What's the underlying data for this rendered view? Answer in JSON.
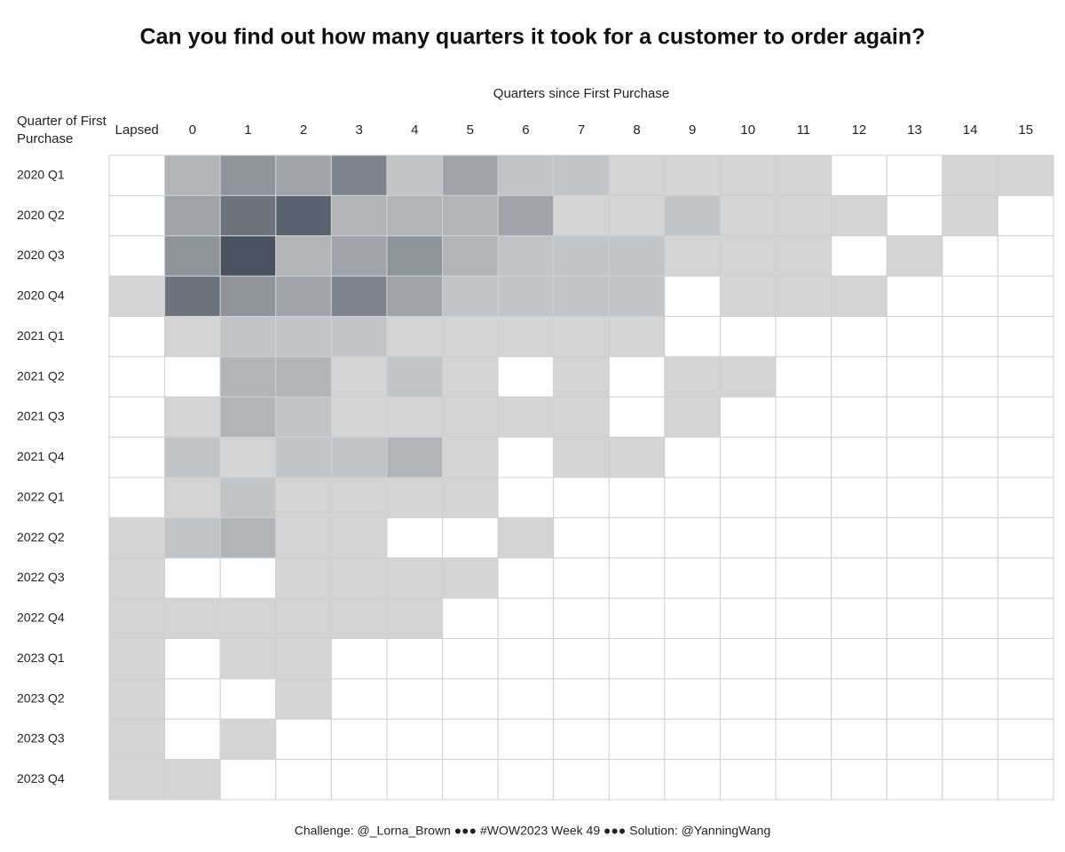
{
  "chart_data": {
    "type": "heatmap",
    "title": "Can you find out how many quarters it took for a customer to order again?",
    "x_title": "Quarters since First Purchase",
    "y_title": "Quarter of First Purchase",
    "footer": "Challenge: @_Lorna_Brown ●●● #WOW2023 Week 49 ●●● Solution: @YanningWang",
    "columns": [
      "Lapsed",
      "0",
      "1",
      "2",
      "3",
      "4",
      "5",
      "6",
      "7",
      "8",
      "9",
      "10",
      "11",
      "12",
      "13",
      "14",
      "15"
    ],
    "rows": [
      "2020 Q1",
      "2020 Q2",
      "2020 Q3",
      "2020 Q4",
      "2021 Q1",
      "2021 Q2",
      "2021 Q3",
      "2021 Q4",
      "2022 Q1",
      "2022 Q2",
      "2022 Q3",
      "2022 Q4",
      "2023 Q1",
      "2023 Q2",
      "2023 Q3",
      "2023 Q4"
    ],
    "values": [
      [
        null,
        3,
        5,
        4,
        6,
        2,
        4,
        2,
        2,
        1,
        1,
        1,
        1,
        null,
        null,
        1,
        1
      ],
      [
        null,
        4,
        7,
        8,
        3,
        3,
        3,
        4,
        1,
        1,
        2,
        1,
        1,
        1,
        null,
        1,
        null
      ],
      [
        null,
        5,
        9,
        3,
        4,
        5,
        3,
        2,
        2,
        2,
        1,
        1,
        1,
        null,
        1,
        null,
        null
      ],
      [
        1,
        7,
        5,
        4,
        6,
        4,
        2,
        2,
        2,
        2,
        null,
        1,
        1,
        1,
        null,
        null,
        null
      ],
      [
        null,
        1,
        2,
        2,
        2,
        1,
        1,
        1,
        1,
        1,
        null,
        null,
        null,
        null,
        null,
        null,
        null
      ],
      [
        null,
        null,
        3,
        3,
        1,
        2,
        1,
        null,
        1,
        null,
        1,
        1,
        null,
        null,
        null,
        null,
        null
      ],
      [
        null,
        1,
        3,
        2,
        1,
        1,
        1,
        1,
        1,
        null,
        1,
        null,
        null,
        null,
        null,
        null,
        null
      ],
      [
        null,
        2,
        1,
        2,
        2,
        3,
        1,
        null,
        1,
        1,
        null,
        null,
        null,
        null,
        null,
        null,
        null
      ],
      [
        null,
        1,
        2,
        1,
        1,
        1,
        1,
        null,
        null,
        null,
        null,
        null,
        null,
        null,
        null,
        null,
        null
      ],
      [
        1,
        2,
        3,
        1,
        1,
        null,
        null,
        1,
        null,
        null,
        null,
        null,
        null,
        null,
        null,
        null,
        null
      ],
      [
        1,
        null,
        null,
        1,
        1,
        1,
        1,
        null,
        null,
        null,
        null,
        null,
        null,
        null,
        null,
        null,
        null
      ],
      [
        1,
        1,
        1,
        1,
        1,
        1,
        null,
        null,
        null,
        null,
        null,
        null,
        null,
        null,
        null,
        null,
        null
      ],
      [
        1,
        null,
        1,
        1,
        null,
        null,
        null,
        null,
        null,
        null,
        null,
        null,
        null,
        null,
        null,
        null,
        null
      ],
      [
        1,
        null,
        null,
        1,
        null,
        null,
        null,
        null,
        null,
        null,
        null,
        null,
        null,
        null,
        null,
        null,
        null
      ],
      [
        1,
        null,
        1,
        null,
        null,
        null,
        null,
        null,
        null,
        null,
        null,
        null,
        null,
        null,
        null,
        null,
        null
      ],
      [
        1,
        1,
        null,
        null,
        null,
        null,
        null,
        null,
        null,
        null,
        null,
        null,
        null,
        null,
        null,
        null,
        null
      ]
    ],
    "color_low": "#d4d4d4",
    "color_high": "#4a5260"
  }
}
